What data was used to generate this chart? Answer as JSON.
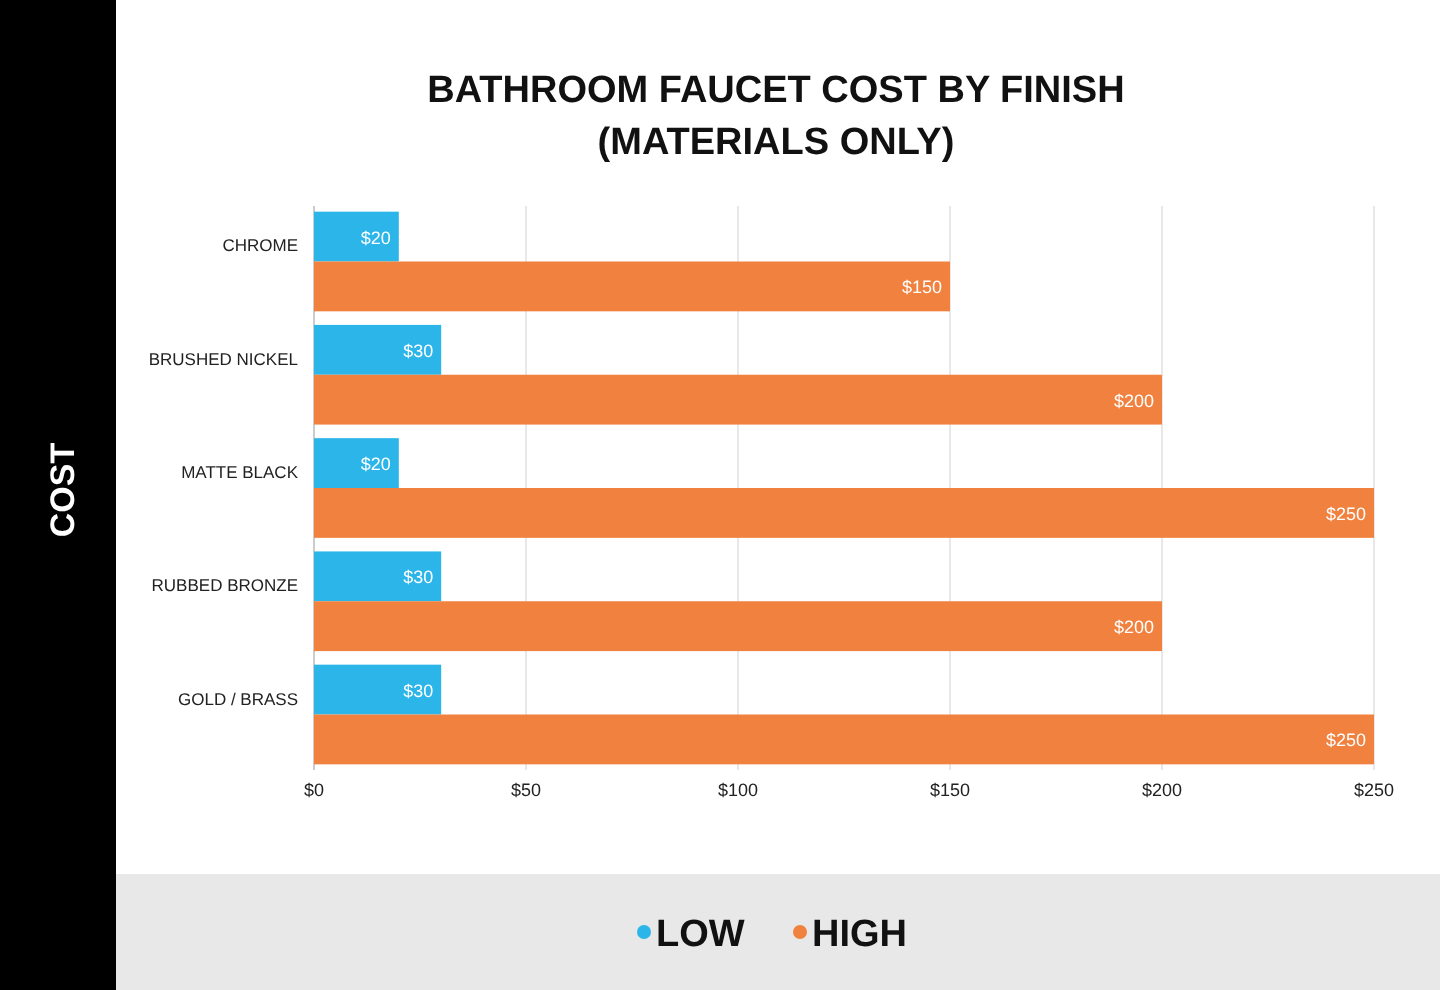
{
  "chart_data": {
    "type": "bar",
    "orientation": "horizontal",
    "title": "BATHROOM FAUCET COST BY FINISH\n(MATERIALS ONLY)",
    "ylabel": "COST",
    "categories": [
      "CHROME",
      "BRUSHED NICKEL",
      "MATTE BLACK",
      "RUBBED BRONZE",
      "GOLD / BRASS"
    ],
    "series": [
      {
        "name": "LOW",
        "color": "#2bb5e8",
        "values": [
          20,
          30,
          20,
          30,
          30
        ],
        "value_labels": [
          "$20",
          "$30",
          "$20",
          "$30",
          "$30"
        ]
      },
      {
        "name": "HIGH",
        "color": "#f0813e",
        "values": [
          150,
          200,
          250,
          200,
          250
        ],
        "value_labels": [
          "$150",
          "$200",
          "$250",
          "$200",
          "$250"
        ]
      }
    ],
    "xlim": [
      0,
      250
    ],
    "xticks": [
      {
        "value": 0,
        "label": "$0"
      },
      {
        "value": 50,
        "label": "$50"
      },
      {
        "value": 100,
        "label": "$100"
      },
      {
        "value": 150,
        "label": "$150"
      },
      {
        "value": 200,
        "label": "$200"
      },
      {
        "value": 250,
        "label": "$250"
      }
    ],
    "grid": "x",
    "legend": "bottom"
  }
}
